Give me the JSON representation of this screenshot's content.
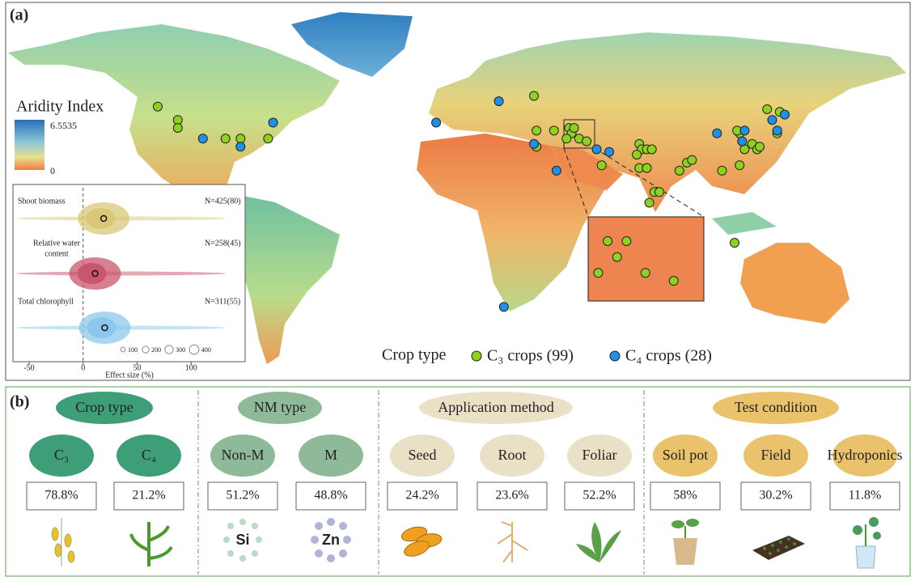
{
  "panel_a": {
    "label": "(a)",
    "colorbar": {
      "title": "Aridity Index",
      "max": 6.5535,
      "min": 0
    },
    "legend": {
      "title": "Crop type",
      "items": [
        {
          "label": "C₃ crops (99)",
          "color": "#8fd11f",
          "sites": [
            [
              -120,
              51
            ],
            [
              -112,
              46
            ],
            [
              -112,
              43
            ],
            [
              -93,
              39
            ],
            [
              -87,
              39
            ],
            [
              -76,
              39
            ],
            [
              30,
              55
            ],
            [
              31,
              42
            ],
            [
              31,
              36
            ],
            [
              38,
              42
            ],
            [
              44,
              43
            ],
            [
              45,
              41
            ],
            [
              46,
              43
            ],
            [
              48,
              39
            ],
            [
              51,
              38
            ],
            [
              43,
              39
            ],
            [
              57,
              29
            ],
            [
              72,
              37
            ],
            [
              73,
              35
            ],
            [
              75,
              35
            ],
            [
              71,
              33
            ],
            [
              77,
              35
            ],
            [
              72,
              28
            ],
            [
              75,
              28
            ],
            [
              88,
              27
            ],
            [
              91,
              30
            ],
            [
              93,
              31
            ],
            [
              78,
              19
            ],
            [
              80,
              19
            ],
            [
              76,
              15
            ],
            [
              105,
              27
            ],
            [
              112,
              29
            ],
            [
              123,
              50
            ],
            [
              128,
              49
            ],
            [
              112,
              41
            ],
            [
              111,
              42
            ],
            [
              114,
              35
            ],
            [
              117,
              37
            ],
            [
              119,
              35
            ],
            [
              120,
              36
            ],
            [
              127,
              41
            ],
            [
              110,
              0
            ]
          ]
        },
        {
          "label": "C₄ crops (28)",
          "color": "#1e90e6",
          "sites": [
            [
              -102,
              39
            ],
            [
              -87,
              36
            ],
            [
              -74,
              45
            ],
            [
              -9,
              45
            ],
            [
              16,
              53
            ],
            [
              30,
              37
            ],
            [
              39,
              27
            ],
            [
              55,
              35
            ],
            [
              60,
              34
            ],
            [
              103,
              41
            ],
            [
              114,
              42
            ],
            [
              113,
              38
            ],
            [
              125,
              46
            ],
            [
              127,
              42
            ],
            [
              130,
              48
            ],
            [
              18,
              -24
            ]
          ]
        }
      ]
    },
    "inset": {
      "xlabel": "Effect size (%)",
      "xlim": [
        -65,
        150
      ],
      "xticks": [
        -50,
        0,
        50,
        100
      ],
      "rows": [
        {
          "label": [
            "Shoot biomass"
          ],
          "n": "N=425(80)",
          "mean": 19,
          "color": "#d8c878"
        },
        {
          "label": [
            "Relative water",
            "content"
          ],
          "n": "N=258(45)",
          "mean": 11,
          "color": "#c8566e"
        },
        {
          "label": [
            "Total chlorophyll"
          ],
          "n": "N=311(55)",
          "mean": 20,
          "color": "#8cc8ec"
        }
      ],
      "size_legend": [
        100,
        200,
        300,
        400
      ]
    }
  },
  "panel_b": {
    "label": "(b)",
    "groups": [
      {
        "title": "Crop type",
        "color": "#3d9e78",
        "items": [
          {
            "label": "C₃",
            "percent": "78.8%"
          },
          {
            "label": "C₄",
            "percent": "21.2%"
          }
        ]
      },
      {
        "title": "NM type",
        "color": "#8fba9a",
        "items": [
          {
            "label": "Non-M",
            "percent": "51.2%",
            "icon": "Si"
          },
          {
            "label": "M",
            "percent": "48.8%",
            "icon": "Zn"
          }
        ]
      },
      {
        "title": "Application method",
        "color": "#e9e0c6",
        "items": [
          {
            "label": "Seed",
            "percent": "24.2%"
          },
          {
            "label": "Root",
            "percent": "23.6%"
          },
          {
            "label": "Foliar",
            "percent": "52.2%"
          }
        ]
      },
      {
        "title": "Test condition",
        "color": "#eac26c",
        "items": [
          {
            "label": "Soil pot",
            "percent": "58%"
          },
          {
            "label": "Field",
            "percent": "30.2%"
          },
          {
            "label": "Hydroponics",
            "percent": "11.8%"
          }
        ]
      }
    ]
  }
}
